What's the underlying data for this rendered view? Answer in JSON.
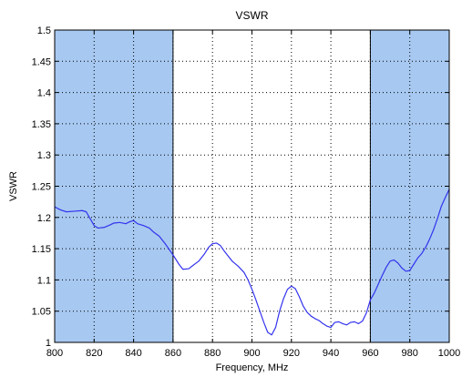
{
  "chart_data": {
    "type": "line",
    "title": "VSWR",
    "xlabel": "Frequency, MHz",
    "ylabel": "VSWR",
    "xlim": [
      800,
      1000
    ],
    "ylim": [
      1,
      1.5
    ],
    "grid": true,
    "grid_style": "dotted",
    "x_ticks": [
      "800",
      "820",
      "840",
      "860",
      "880",
      "900",
      "920",
      "940",
      "960",
      "980",
      "1000"
    ],
    "y_ticks": [
      "1",
      "1.05",
      "1.1",
      "1.15",
      "1.2",
      "1.25",
      "1.3",
      "1.35",
      "1.4",
      "1.45",
      "1.5"
    ],
    "shaded_bands": [
      {
        "from": 800,
        "to": 860,
        "color": "#a7c8f0"
      },
      {
        "from": 960,
        "to": 1000,
        "color": "#a7c8f0"
      }
    ],
    "band_edge_lines": [
      860,
      960
    ],
    "series": [
      {
        "color": "#3333ee",
        "x": [
          800,
          803,
          806,
          810,
          814,
          816,
          818,
          820,
          822,
          825,
          828,
          830,
          833,
          836,
          838,
          840,
          842,
          845,
          848,
          850,
          853,
          856,
          858,
          860,
          863,
          865,
          868,
          870,
          873,
          876,
          878,
          880,
          882,
          884,
          886,
          888,
          890,
          893,
          896,
          898,
          900,
          902,
          904,
          906,
          908,
          910,
          912,
          914,
          916,
          918,
          920,
          922,
          924,
          926,
          928,
          930,
          932,
          934,
          936,
          938,
          940,
          942,
          944,
          946,
          948,
          950,
          952,
          954,
          956,
          958,
          960,
          962,
          964,
          966,
          968,
          970,
          972,
          974,
          976,
          978,
          980,
          982,
          984,
          986,
          988,
          990,
          992,
          994,
          996,
          998,
          1000
        ],
        "y": [
          1.217,
          1.212,
          1.209,
          1.21,
          1.211,
          1.209,
          1.198,
          1.187,
          1.183,
          1.184,
          1.188,
          1.191,
          1.192,
          1.19,
          1.193,
          1.195,
          1.19,
          1.187,
          1.183,
          1.177,
          1.17,
          1.158,
          1.149,
          1.14,
          1.125,
          1.117,
          1.118,
          1.123,
          1.13,
          1.142,
          1.152,
          1.158,
          1.159,
          1.155,
          1.146,
          1.138,
          1.13,
          1.122,
          1.112,
          1.1,
          1.085,
          1.068,
          1.05,
          1.032,
          1.016,
          1.012,
          1.024,
          1.05,
          1.07,
          1.085,
          1.09,
          1.086,
          1.073,
          1.058,
          1.048,
          1.042,
          1.038,
          1.035,
          1.03,
          1.026,
          1.024,
          1.032,
          1.033,
          1.03,
          1.028,
          1.032,
          1.033,
          1.03,
          1.034,
          1.047,
          1.068,
          1.079,
          1.093,
          1.107,
          1.12,
          1.13,
          1.132,
          1.127,
          1.119,
          1.114,
          1.115,
          1.125,
          1.135,
          1.142,
          1.152,
          1.165,
          1.18,
          1.198,
          1.218,
          1.232,
          1.245
        ]
      }
    ]
  }
}
